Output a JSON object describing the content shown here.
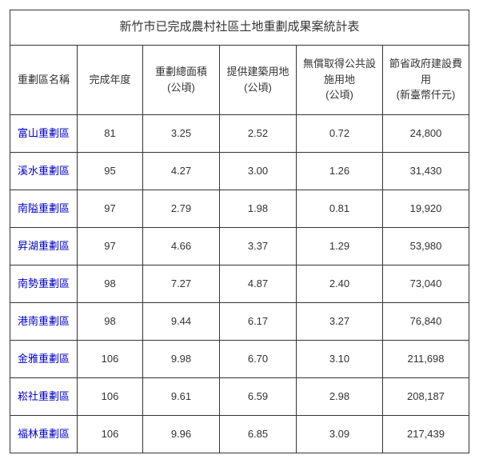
{
  "table": {
    "title": "新竹市已完成農村社區土地重劃成果案統計表",
    "columns": [
      {
        "label": "重劃區名稱"
      },
      {
        "label": "完成年度"
      },
      {
        "label": "重劃總面積\n(公頃)"
      },
      {
        "label": "提供建築用地\n(公頃)"
      },
      {
        "label": "無償取得公共設施用地\n(公頃)"
      },
      {
        "label": "節省政府建設費用\n(新臺幣仟元)"
      }
    ],
    "rows": [
      {
        "name": "富山重劃區",
        "year": "81",
        "area": "3.25",
        "build": "2.52",
        "public": "0.72",
        "save": "24,800"
      },
      {
        "name": "溪水重劃區",
        "year": "95",
        "area": "4.27",
        "build": "3.00",
        "public": "1.26",
        "save": "31,430"
      },
      {
        "name": "南隘重劃區",
        "year": "97",
        "area": "2.79",
        "build": "1.98",
        "public": "0.81",
        "save": "19,920"
      },
      {
        "name": "昇湖重劃區",
        "year": "97",
        "area": "4.66",
        "build": "3.37",
        "public": "1.29",
        "save": "53,980"
      },
      {
        "name": "南勢重劃區",
        "year": "98",
        "area": "7.27",
        "build": "4.87",
        "public": "2.40",
        "save": "73,040"
      },
      {
        "name": "港南重劃區",
        "year": "98",
        "area": "9.44",
        "build": "6.17",
        "public": "3.27",
        "save": "76,840"
      },
      {
        "name": "金雅重劃區",
        "year": "106",
        "area": "9.98",
        "build": "6.70",
        "public": "3.10",
        "save": "211,698"
      },
      {
        "name": "崧社重劃區",
        "year": "106",
        "area": "9.61",
        "build": "6.59",
        "public": "2.98",
        "save": "208,187"
      },
      {
        "name": "福林重劃區",
        "year": "106",
        "area": "9.96",
        "build": "6.85",
        "public": "3.09",
        "save": "217,439"
      }
    ],
    "colors": {
      "link": "#0000cd",
      "border": "#333333",
      "text": "#333333",
      "background": "#ffffff"
    }
  }
}
